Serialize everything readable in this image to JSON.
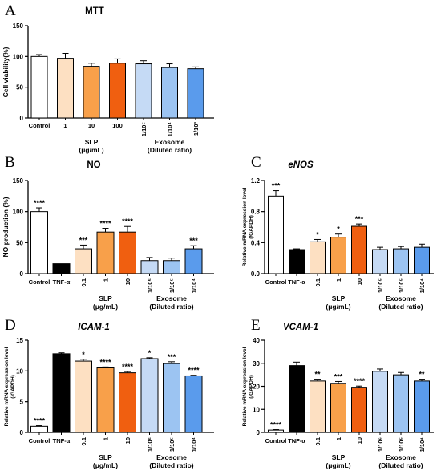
{
  "colors": {
    "control": "#ffffff",
    "tnf": "#000000",
    "slp_0_1": "#fde0c2",
    "slp_1": "#f8a04a",
    "slp_10": "#f05f10",
    "exo_1": "#c5daf5",
    "exo_2": "#9cc4f2",
    "exo_3": "#5a9bec"
  },
  "chart_data": [
    {
      "panel": "A",
      "type": "bar",
      "title": "MTT",
      "title_italic": false,
      "ylabel": "Cell viability(%)",
      "ylim": [
        0,
        150
      ],
      "yticks": [
        "0",
        "50",
        "100",
        "150"
      ],
      "categories": [
        "Control",
        "1",
        "10",
        "100",
        "1/10⁵",
        "1/10⁴",
        "1/10³"
      ],
      "values": [
        100,
        97,
        84,
        89,
        88,
        82,
        80
      ],
      "errors": [
        3,
        8,
        5,
        7,
        5,
        6,
        3
      ],
      "colors": [
        "control",
        "slp_0_1",
        "slp_1",
        "slp_10",
        "exo_1",
        "exo_2",
        "exo_3"
      ],
      "significance": [
        "",
        "",
        "",
        "",
        "",
        "",
        ""
      ],
      "groups": [
        {
          "label": "SLP",
          "sub": "(μg/mL)",
          "span": [
            1,
            3
          ]
        },
        {
          "label": "Exosome",
          "sub": "(Diluted ratio)",
          "span": [
            4,
            6
          ]
        }
      ]
    },
    {
      "panel": "B",
      "type": "bar",
      "title": "NO",
      "title_italic": false,
      "ylabel": "NO production (%)",
      "ylim": [
        0,
        150
      ],
      "yticks": [
        "0",
        "50",
        "100",
        "150"
      ],
      "categories": [
        "Control",
        "TNF-α",
        "0.1",
        "1",
        "10",
        "1/10⁵",
        "1/10⁵",
        "1/10⁴"
      ],
      "values": [
        100,
        16,
        40,
        67,
        67,
        21,
        21,
        40
      ],
      "errors": [
        6,
        0,
        6,
        6,
        9,
        5,
        4,
        5
      ],
      "colors": [
        "control",
        "tnf",
        "slp_0_1",
        "slp_1",
        "slp_10",
        "exo_1",
        "exo_2",
        "exo_3"
      ],
      "significance": [
        "****",
        "",
        "***",
        "****",
        "****",
        "",
        "",
        "***"
      ],
      "groups": [
        {
          "label": "SLP",
          "sub": "(μg/mL)",
          "span": [
            2,
            4
          ]
        },
        {
          "label": "Exosome",
          "sub": "(Diluted ratio)",
          "span": [
            5,
            7
          ]
        }
      ]
    },
    {
      "panel": "C",
      "type": "bar",
      "title": "eNOS",
      "title_italic": true,
      "ylabel": "Relative mRNA expression level",
      "ylabel2": "(/GAPDH)",
      "ylim": [
        0,
        1.2
      ],
      "yticks": [
        "0.0",
        "0.4",
        "0.8",
        "1.2"
      ],
      "categories": [
        "Control",
        "TNF-α",
        "0.1",
        "1",
        "10",
        "1/10⁵",
        "1/10⁵",
        "1/10⁴"
      ],
      "values": [
        1.0,
        0.31,
        0.41,
        0.47,
        0.61,
        0.31,
        0.32,
        0.34
      ],
      "errors": [
        0.07,
        0.01,
        0.03,
        0.04,
        0.03,
        0.03,
        0.03,
        0.04
      ],
      "colors": [
        "control",
        "tnf",
        "slp_0_1",
        "slp_1",
        "slp_10",
        "exo_1",
        "exo_2",
        "exo_3"
      ],
      "significance": [
        "***",
        "",
        "*",
        "*",
        "***",
        "",
        "",
        ""
      ],
      "groups": [
        {
          "label": "SLP",
          "sub": "(μg/mL)",
          "span": [
            2,
            4
          ]
        },
        {
          "label": "Exosome",
          "sub": "(Diluted ratio)",
          "span": [
            5,
            7
          ]
        }
      ]
    },
    {
      "panel": "D",
      "type": "bar",
      "title": "ICAM-1",
      "title_italic": true,
      "ylabel": "Relative mRNA expression level",
      "ylabel2": "(/GAPDH)",
      "ylim": [
        0,
        15
      ],
      "yticks": [
        "0",
        "5",
        "10",
        "15"
      ],
      "categories": [
        "Control",
        "TNF-α",
        "0.1",
        "1",
        "10",
        "1/10⁶",
        "1/10⁵",
        "1/10⁴"
      ],
      "values": [
        1.0,
        12.8,
        11.6,
        10.5,
        9.7,
        12.0,
        11.2,
        9.2
      ],
      "errors": [
        0.1,
        0.15,
        0.3,
        0.15,
        0.2,
        0.15,
        0.3,
        0.1
      ],
      "colors": [
        "control",
        "tnf",
        "slp_0_1",
        "slp_1",
        "slp_10",
        "exo_1",
        "exo_2",
        "exo_3"
      ],
      "significance": [
        "****",
        "",
        "*",
        "****",
        "****",
        "*",
        "***",
        "****"
      ],
      "groups": [
        {
          "label": "SLP",
          "sub": "(μg/mL)",
          "span": [
            2,
            4
          ]
        },
        {
          "label": "Exosome",
          "sub": "(Diluted ratio)",
          "span": [
            5,
            7
          ]
        }
      ]
    },
    {
      "panel": "E",
      "type": "bar",
      "title": "VCAM-1",
      "title_italic": true,
      "ylabel": "Relative mRNA expression level",
      "ylabel2": "(/GAPDH)",
      "ylim": [
        0,
        40
      ],
      "yticks": [
        "0",
        "10",
        "20",
        "30",
        "40"
      ],
      "categories": [
        "Control",
        "TNF-α",
        "0.1",
        "1",
        "10",
        "1/10⁶",
        "1/10⁵",
        "1/10⁴"
      ],
      "values": [
        1.0,
        29.0,
        22.3,
        21.3,
        19.6,
        26.5,
        25.0,
        22.3
      ],
      "errors": [
        0.2,
        1.5,
        0.8,
        0.8,
        0.5,
        1.0,
        1.0,
        0.8
      ],
      "colors": [
        "control",
        "tnf",
        "slp_0_1",
        "slp_1",
        "slp_10",
        "exo_1",
        "exo_2",
        "exo_3"
      ],
      "significance": [
        "****",
        "",
        "**",
        "***",
        "****",
        "",
        "",
        "**"
      ],
      "groups": [
        {
          "label": "SLP",
          "sub": "(μg/mL)",
          "span": [
            2,
            4
          ]
        },
        {
          "label": "Exosome",
          "sub": "(Diluted ratio)",
          "span": [
            5,
            7
          ]
        }
      ]
    }
  ]
}
